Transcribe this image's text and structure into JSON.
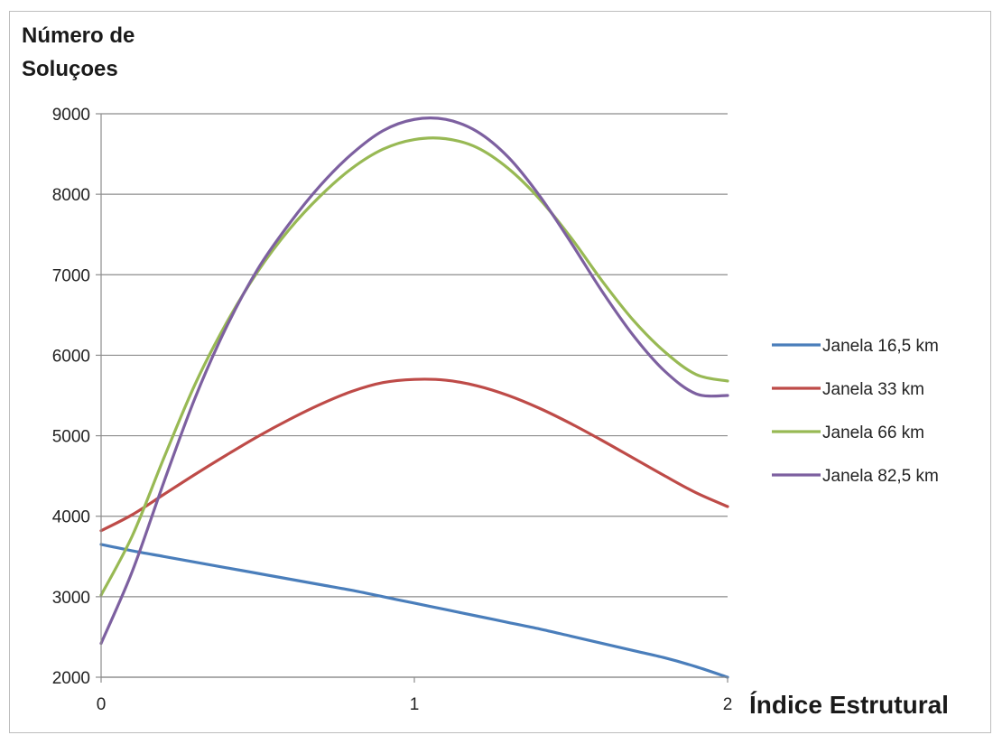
{
  "chart_data": {
    "type": "line",
    "title": "",
    "ylabel": [
      "Número de",
      "Soluçoes"
    ],
    "xlabel": "Índice Estrutural",
    "xlim": [
      0,
      2
    ],
    "ylim": [
      2000,
      9000
    ],
    "x_ticks": [
      "0",
      "1",
      "2"
    ],
    "y_ticks": [
      "2000",
      "3000",
      "4000",
      "5000",
      "6000",
      "7000",
      "8000",
      "9000"
    ],
    "grid": "horizontal",
    "legend_position": "right",
    "series": [
      {
        "name": "Janela 16,5 km",
        "color": "#4a7ebb",
        "x": [
          0,
          0.1,
          0.2,
          0.3,
          0.4,
          0.5,
          0.6,
          0.7,
          0.8,
          0.9,
          1.0,
          1.1,
          1.2,
          1.3,
          1.4,
          1.5,
          1.6,
          1.7,
          1.8,
          1.9,
          2.0
        ],
        "y": [
          3650,
          3570,
          3500,
          3430,
          3360,
          3290,
          3220,
          3150,
          3080,
          3000,
          2920,
          2840,
          2760,
          2680,
          2600,
          2510,
          2420,
          2330,
          2240,
          2130,
          2000
        ]
      },
      {
        "name": "Janela 33 km",
        "color": "#be4b48",
        "x": [
          0,
          0.1,
          0.2,
          0.3,
          0.4,
          0.5,
          0.6,
          0.7,
          0.8,
          0.9,
          1.0,
          1.1,
          1.2,
          1.3,
          1.4,
          1.5,
          1.6,
          1.7,
          1.8,
          1.9,
          2.0
        ],
        "y": [
          3820,
          4020,
          4270,
          4520,
          4760,
          4990,
          5200,
          5390,
          5550,
          5660,
          5700,
          5690,
          5620,
          5500,
          5340,
          5150,
          4940,
          4720,
          4500,
          4290,
          4120
        ]
      },
      {
        "name": "Janela 66 km",
        "color": "#98b954",
        "x": [
          0,
          0.1,
          0.2,
          0.3,
          0.4,
          0.5,
          0.6,
          0.7,
          0.8,
          0.9,
          1.0,
          1.1,
          1.2,
          1.3,
          1.4,
          1.5,
          1.6,
          1.7,
          1.8,
          1.9,
          2.0
        ],
        "y": [
          3020,
          3760,
          4720,
          5640,
          6400,
          7040,
          7560,
          7980,
          8320,
          8560,
          8680,
          8690,
          8580,
          8320,
          7940,
          7460,
          6920,
          6430,
          6040,
          5760,
          5680
        ]
      },
      {
        "name": "Janela 82,5 km",
        "color": "#7d60a0",
        "x": [
          0,
          0.1,
          0.2,
          0.3,
          0.4,
          0.5,
          0.6,
          0.7,
          0.8,
          0.9,
          1.0,
          1.1,
          1.2,
          1.3,
          1.4,
          1.5,
          1.6,
          1.7,
          1.8,
          1.9,
          2.0
        ],
        "y": [
          2420,
          3320,
          4420,
          5470,
          6350,
          7070,
          7630,
          8110,
          8500,
          8790,
          8930,
          8930,
          8780,
          8460,
          7980,
          7400,
          6790,
          6240,
          5800,
          5520,
          5500
        ]
      }
    ]
  }
}
